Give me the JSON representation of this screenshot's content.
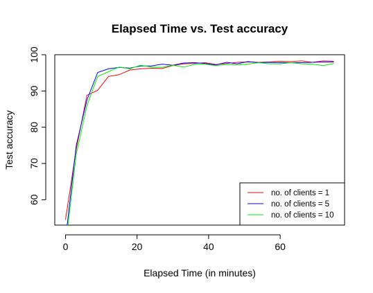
{
  "chart_data": {
    "type": "line",
    "title": "Elapsed Time vs. Test accuracy",
    "xlabel": "Elapsed Time (in minutes)",
    "ylabel": "Test accuracy",
    "xlim": [
      -3,
      78
    ],
    "ylim": [
      53,
      100
    ],
    "xticks": [
      0,
      20,
      40,
      60
    ],
    "yticks": [
      60,
      70,
      80,
      90,
      100
    ],
    "grid": false,
    "legend_position": "bottom-right",
    "series": [
      {
        "name": "no. of clients = 1",
        "color": "#ff0000",
        "x": [
          0,
          3,
          6,
          9,
          12,
          15,
          18,
          21,
          24,
          27,
          30,
          33,
          36,
          39,
          42,
          45,
          48,
          51,
          54,
          57,
          60,
          63,
          66,
          69,
          72,
          75
        ],
        "y": [
          54.5,
          74.0,
          88.8,
          90.2,
          94.0,
          94.5,
          95.8,
          96.1,
          96.3,
          96.2,
          97.0,
          97.5,
          97.6,
          97.8,
          97.3,
          97.6,
          97.9,
          98.0,
          97.9,
          98.0,
          98.2,
          98.1,
          98.3,
          97.9,
          98.3,
          98.2
        ]
      },
      {
        "name": "no. of clients = 5",
        "color": "#0000ff",
        "x": [
          0,
          3,
          6,
          9,
          12,
          15,
          18,
          21,
          24,
          27,
          30,
          33,
          36,
          39,
          42,
          45,
          48,
          51,
          54,
          57,
          60,
          63,
          66,
          69,
          72,
          75
        ],
        "y": [
          49.0,
          75.0,
          87.5,
          95.1,
          96.1,
          96.5,
          96.3,
          96.9,
          96.9,
          97.4,
          97.1,
          97.7,
          97.8,
          97.6,
          97.2,
          97.9,
          97.5,
          98.1,
          97.8,
          97.9,
          97.8,
          97.8,
          97.8,
          97.9,
          98.0,
          98.0
        ]
      },
      {
        "name": "no. of clients = 10",
        "color": "#00ee00",
        "x": [
          0,
          3,
          6,
          9,
          12,
          15,
          18,
          21,
          24,
          27,
          30,
          33,
          36,
          39,
          42,
          45,
          48,
          51,
          54,
          57,
          60,
          63,
          66,
          69,
          72,
          75
        ],
        "y": [
          47.0,
          72.5,
          86.0,
          94.0,
          95.3,
          96.6,
          96.1,
          97.1,
          96.6,
          96.5,
          97.1,
          96.6,
          97.3,
          97.4,
          97.0,
          97.3,
          97.2,
          97.4,
          97.8,
          97.5,
          97.5,
          97.8,
          97.5,
          97.4,
          97.0,
          97.6
        ]
      }
    ]
  }
}
